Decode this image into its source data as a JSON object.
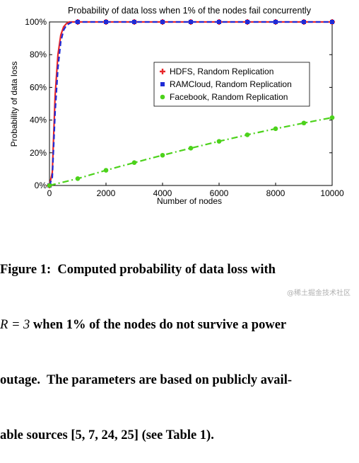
{
  "chart_data": {
    "type": "line",
    "title": "Probability of data loss when 1% of the nodes fail concurrently",
    "xlabel": "Number of nodes",
    "ylabel": "Probability of data loss",
    "xlim": [
      0,
      10000
    ],
    "ylim": [
      0,
      100
    ],
    "xticks": [
      0,
      2000,
      4000,
      6000,
      8000,
      10000
    ],
    "yticks": [
      0,
      20,
      40,
      60,
      80,
      100
    ],
    "ytick_labels": [
      "0%",
      "20%",
      "40%",
      "60%",
      "80%",
      "100%"
    ],
    "grid": false,
    "legend_position": "center-right",
    "series": [
      {
        "name": "HDFS, Random Replication",
        "color": "#e8262a",
        "line_style": "solid",
        "marker": "plus",
        "x": [
          0,
          100,
          200,
          300,
          400,
          500,
          600,
          700,
          800,
          1000,
          2000,
          3000,
          4000,
          5000,
          6000,
          7000,
          8000,
          9000,
          10000
        ],
        "y": [
          0,
          8,
          55,
          80,
          92,
          97,
          99,
          100,
          100,
          100,
          100,
          100,
          100,
          100,
          100,
          100,
          100,
          100,
          100
        ]
      },
      {
        "name": "RAMCloud, Random Replication",
        "color": "#1f2bd6",
        "line_style": "dashed",
        "marker": "square",
        "x": [
          0,
          100,
          200,
          300,
          400,
          500,
          600,
          700,
          800,
          1000,
          2000,
          3000,
          4000,
          5000,
          6000,
          7000,
          8000,
          9000,
          10000
        ],
        "y": [
          0,
          5,
          45,
          72,
          88,
          95,
          98,
          99,
          100,
          100,
          100,
          100,
          100,
          100,
          100,
          100,
          100,
          100,
          100
        ]
      },
      {
        "name": "Facebook, Random Replication",
        "color": "#4cd21b",
        "line_style": "dashdot",
        "marker": "circle",
        "x": [
          0,
          1000,
          2000,
          3000,
          4000,
          5000,
          6000,
          7000,
          8000,
          9000,
          10000
        ],
        "y": [
          0,
          4.2,
          9.3,
          14,
          18.5,
          22.8,
          27,
          31,
          34.7,
          38.2,
          41.5
        ]
      }
    ]
  },
  "caption": {
    "line1": "Figure 1:  Computed probability of data loss with",
    "line2_math": "R",
    "line2_eq": " = 3",
    "line2_rest": " when 1% of the nodes do not survive a power",
    "line3": "outage.  The parameters are based on publicly avail-",
    "line4": "able sources [5, 7, 24, 25] (see Table 1)."
  },
  "watermark": "@稀土掘金技术社区"
}
